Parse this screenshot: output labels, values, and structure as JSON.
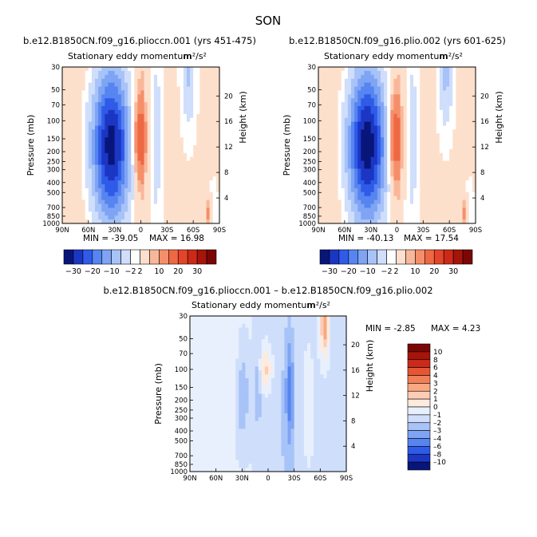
{
  "figure_title": "SON",
  "unit": "m²/s²",
  "chart_data": [
    {
      "type": "heatmap",
      "title": "b.e12.B1850CN.f09_g16.plioccn.001 (yrs 451-475)",
      "subtitle": "Stationary eddy momentum",
      "xlabel": "",
      "ylabel": "Pressure (mb)",
      "right_ylabel": "Height (km)",
      "x_ticks": [
        "90N",
        "60N",
        "30N",
        "0",
        "30S",
        "60S",
        "90S"
      ],
      "x_values": [
        90,
        60,
        30,
        0,
        -30,
        -60,
        -90
      ],
      "y_ticks": [
        "30",
        "50",
        "70",
        "100",
        "150",
        "200",
        "250",
        "300",
        "400",
        "500",
        "700",
        "850",
        "1000"
      ],
      "y_values": [
        30,
        50,
        70,
        100,
        150,
        200,
        250,
        300,
        400,
        500,
        700,
        850,
        1000
      ],
      "right_y_ticks": [
        "20",
        "16",
        "12",
        "8",
        "4"
      ],
      "right_y_values": [
        20,
        16,
        12,
        8,
        4
      ],
      "min_label": "MIN = -39.05",
      "max_label": "MAX = 16.98",
      "min": -39.05,
      "max": 16.98,
      "features": [
        {
          "lat": 34,
          "p": 175,
          "value": -39,
          "sigma_lat": 16,
          "sigma_logp": 0.55
        },
        {
          "lat": 1,
          "p": 150,
          "value": 17,
          "sigma_lat": 6,
          "sigma_logp": 0.32
        },
        {
          "lat": -18,
          "p": 150,
          "value": -6,
          "sigma_lat": 4,
          "sigma_logp": 0.6
        },
        {
          "lat": -55,
          "p": 35,
          "value": -9,
          "sigma_lat": 5,
          "sigma_logp": 0.35
        },
        {
          "lat": -78,
          "p": 800,
          "value": 8,
          "sigma_lat": 3,
          "sigma_logp": 0.12
        },
        {
          "lat": -83,
          "p": 700,
          "value": -4,
          "sigma_lat": 3,
          "sigma_logp": 0.15
        }
      ]
    },
    {
      "type": "heatmap",
      "title": "b.e12.B1850CN.f09_g16.plio.002 (yrs 601-625)",
      "subtitle": "Stationary eddy momentum",
      "xlabel": "",
      "ylabel": "Pressure (mb)",
      "right_ylabel": "Height (km)",
      "x_ticks": [
        "90N",
        "60N",
        "30N",
        "0",
        "30S",
        "60S",
        "90S"
      ],
      "x_values": [
        90,
        60,
        30,
        0,
        -30,
        -60,
        -90
      ],
      "y_ticks": [
        "30",
        "50",
        "70",
        "100",
        "150",
        "200",
        "250",
        "300",
        "400",
        "500",
        "700",
        "850",
        "1000"
      ],
      "y_values": [
        30,
        50,
        70,
        100,
        150,
        200,
        250,
        300,
        400,
        500,
        700,
        850,
        1000
      ],
      "right_y_ticks": [
        "20",
        "16",
        "12",
        "8",
        "4"
      ],
      "right_y_values": [
        20,
        16,
        12,
        8,
        4
      ],
      "min_label": "MIN = -40.13",
      "max_label": "MAX = 17.54",
      "min": -40.13,
      "max": 17.54,
      "features": [
        {
          "lat": 34,
          "p": 175,
          "value": -40,
          "sigma_lat": 16,
          "sigma_logp": 0.55
        },
        {
          "lat": 2,
          "p": 150,
          "value": 17.5,
          "sigma_lat": 6,
          "sigma_logp": 0.32
        },
        {
          "lat": -18,
          "p": 150,
          "value": -6,
          "sigma_lat": 4,
          "sigma_logp": 0.6
        },
        {
          "lat": -56,
          "p": 35,
          "value": -10,
          "sigma_lat": 5,
          "sigma_logp": 0.35
        },
        {
          "lat": -78,
          "p": 800,
          "value": 8,
          "sigma_lat": 3,
          "sigma_logp": 0.12
        },
        {
          "lat": -83,
          "p": 700,
          "value": -4,
          "sigma_lat": 3,
          "sigma_logp": 0.15
        }
      ]
    },
    {
      "type": "heatmap",
      "title": "b.e12.B1850CN.f09_g16.plioccn.001 – b.e12.B1850CN.f09_g16.plio.002",
      "subtitle": "Stationary eddy momentum",
      "xlabel": "",
      "ylabel": "Pressure (mb)",
      "right_ylabel": "Height (km)",
      "x_ticks": [
        "90N",
        "60N",
        "30N",
        "0",
        "30S",
        "60S",
        "90S"
      ],
      "x_values": [
        90,
        60,
        30,
        0,
        -30,
        -60,
        -90
      ],
      "y_ticks": [
        "30",
        "50",
        "70",
        "100",
        "150",
        "200",
        "250",
        "300",
        "400",
        "500",
        "700",
        "850",
        "1000"
      ],
      "y_values": [
        30,
        50,
        70,
        100,
        150,
        200,
        250,
        300,
        400,
        500,
        700,
        850,
        1000
      ],
      "right_y_ticks": [
        "20",
        "16",
        "12",
        "8",
        "4"
      ],
      "right_y_values": [
        20,
        16,
        12,
        8,
        4
      ],
      "min_label": "MIN =   -2.85",
      "max_label": "MAX =    4.23",
      "min": -2.85,
      "max": 4.23,
      "features": [
        {
          "lat": -65,
          "p": 33,
          "value": 4.2,
          "sigma_lat": 3.5,
          "sigma_logp": 0.25
        },
        {
          "lat": 3,
          "p": 100,
          "value": 2.5,
          "sigma_lat": 5,
          "sigma_logp": 0.15
        },
        {
          "lat": 12,
          "p": 150,
          "value": -1.5,
          "sigma_lat": 3,
          "sigma_logp": 0.3
        },
        {
          "lat": 30,
          "p": 180,
          "value": -2,
          "sigma_lat": 6,
          "sigma_logp": 0.35
        },
        {
          "lat": 40,
          "p": 110,
          "value": 0.8,
          "sigma_lat": 5,
          "sigma_logp": 0.3
        },
        {
          "lat": -25,
          "p": 170,
          "value": -2.8,
          "sigma_lat": 3.5,
          "sigma_logp": 0.4
        },
        {
          "lat": -45,
          "p": 250,
          "value": 0.6,
          "sigma_lat": 8,
          "sigma_logp": 0.7
        },
        {
          "lat": 70,
          "p": 200,
          "value": 0.6,
          "sigma_lat": 10,
          "sigma_logp": 1.2
        },
        {
          "lat": -10,
          "p": 400,
          "value": -0.7,
          "sigma_lat": 20,
          "sigma_logp": 0.9
        }
      ]
    }
  ],
  "colorbar_top": {
    "levels": [
      -30,
      -20,
      -10,
      -2,
      2,
      10,
      20,
      30
    ],
    "labels": [
      "-30",
      "-20",
      "-10",
      "-2",
      "2",
      "10",
      "20",
      "30"
    ],
    "colors": [
      "#08167a",
      "#1c36c4",
      "#2f5be8",
      "#5684f0",
      "#7fa4f4",
      "#a7c3f8",
      "#cfdefb",
      "#ffffff",
      "#fde0cc",
      "#f9b79a",
      "#f48f6a",
      "#ee6844",
      "#e4442a",
      "#cc2a18",
      "#a5150a",
      "#7a0704"
    ],
    "thresholds": [
      -35,
      -30,
      -25,
      -20,
      -15,
      -10,
      -5,
      -2,
      2,
      5,
      10,
      15,
      20,
      25,
      30
    ]
  },
  "colorbar_diff": {
    "labels": [
      "10",
      "8",
      "6",
      "4",
      "3",
      "2",
      "1",
      "0",
      "–1",
      "–2",
      "–3",
      "–4",
      "–6",
      "–8",
      "–10"
    ],
    "levels": [
      -10,
      -8,
      -6,
      -4,
      -3,
      -2,
      -1,
      0,
      1,
      2,
      3,
      4,
      6,
      8,
      10
    ],
    "colors": [
      "#08167a",
      "#1c36c4",
      "#2f5be8",
      "#5684f0",
      "#7fa4f4",
      "#a7c3f8",
      "#cfdefb",
      "#e8f0fd",
      "#fdebdd",
      "#fccdb4",
      "#f9a882",
      "#f27f58",
      "#e65534",
      "#cc2a18",
      "#a5150a",
      "#7a0704"
    ]
  }
}
